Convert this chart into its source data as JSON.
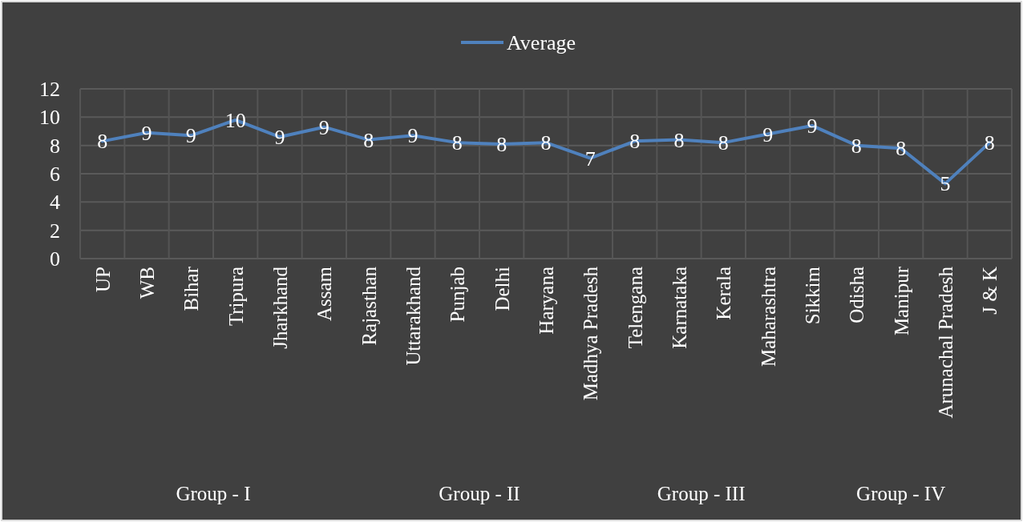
{
  "chart_data": {
    "type": "line",
    "categories": [
      "UP",
      "WB",
      "Bihar",
      "Tripura",
      "Jharkhand",
      "Assam",
      "Rajasthan",
      "Uttarakhand",
      "Punjab",
      "Delhi",
      "Haryana",
      "Madhya Pradesh",
      "Telengana",
      "Karnataka",
      "Kerala",
      "Maharashtra",
      "Sikkim",
      "Odisha",
      "Manipur",
      "Arunachal Pradesh",
      "J & K"
    ],
    "series": [
      {
        "name": "Average",
        "color": "#4f81bd",
        "values": [
          8.3,
          8.9,
          8.7,
          9.8,
          8.6,
          9.3,
          8.4,
          8.7,
          8.2,
          8.1,
          8.2,
          7.1,
          8.3,
          8.4,
          8.2,
          8.8,
          9.4,
          8.0,
          7.8,
          5.3,
          8.2
        ],
        "value_labels": [
          "8",
          "9",
          "9",
          "10",
          "9",
          "9",
          "8",
          "9",
          "8",
          "8",
          "8",
          "7",
          "8",
          "8",
          "8",
          "9",
          "9",
          "8",
          "8",
          "5",
          "8"
        ]
      }
    ],
    "ylim": [
      0,
      12
    ],
    "yticks": [
      0,
      2,
      4,
      6,
      8,
      10,
      12
    ],
    "grid": true,
    "legend": "top",
    "marker": "none",
    "line_style": "solid",
    "annotations": [
      "Group - I",
      "Group - II",
      "Group - III",
      "Group - IV"
    ]
  }
}
